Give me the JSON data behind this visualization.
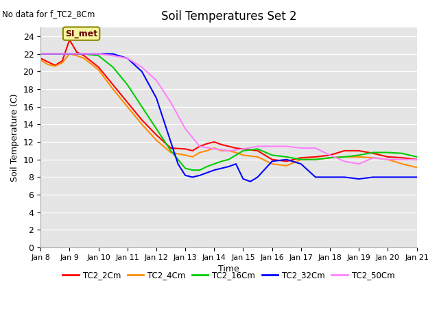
{
  "title": "Soil Temperatures Set 2",
  "xlabel": "Time",
  "ylabel": "Soil Temperature (C)",
  "note": "No data for f_TC2_8Cm",
  "annotation": "SI_met",
  "xlim": [
    0,
    13
  ],
  "ylim": [
    0,
    25
  ],
  "yticks": [
    0,
    2,
    4,
    6,
    8,
    10,
    12,
    14,
    16,
    18,
    20,
    22,
    24
  ],
  "xtick_labels": [
    "Jan 8",
    "Jan 9",
    "Jan 10",
    "Jan 11",
    "Jan 12",
    "Jan 13",
    "Jan 14",
    "Jan 15",
    "Jan 16",
    "Jan 17",
    "Jan 18",
    "Jan 19",
    "Jan 20",
    "Jan 21"
  ],
  "background_color": "#e5e5e5",
  "series": {
    "TC2_2Cm": {
      "color": "#ff0000",
      "x": [
        0,
        0.25,
        0.5,
        0.75,
        1.0,
        1.25,
        1.5,
        2.0,
        2.5,
        3.0,
        3.5,
        4.0,
        4.5,
        5.0,
        5.25,
        5.5,
        5.75,
        6.0,
        6.25,
        6.5,
        6.75,
        7.0,
        7.5,
        8.0,
        8.5,
        9.0,
        9.5,
        10.0,
        10.5,
        11.0,
        11.5,
        12.0,
        12.5,
        13.0
      ],
      "y": [
        21.5,
        21.1,
        20.7,
        21.2,
        23.6,
        22.2,
        21.8,
        20.5,
        18.5,
        16.5,
        14.5,
        12.8,
        11.3,
        11.2,
        11.0,
        11.5,
        11.8,
        12.0,
        11.7,
        11.5,
        11.3,
        11.2,
        11.0,
        10.0,
        9.8,
        10.2,
        10.3,
        10.5,
        11.0,
        11.0,
        10.7,
        10.3,
        10.2,
        10.0
      ]
    },
    "TC2_4Cm": {
      "color": "#ff8c00",
      "x": [
        0,
        0.25,
        0.5,
        0.75,
        1.0,
        1.25,
        1.5,
        2.0,
        2.5,
        3.0,
        3.5,
        4.0,
        4.5,
        5.0,
        5.25,
        5.5,
        5.75,
        6.0,
        6.25,
        6.5,
        6.75,
        7.0,
        7.5,
        8.0,
        8.5,
        9.0,
        9.5,
        10.0,
        10.5,
        11.0,
        11.5,
        12.0,
        12.5,
        13.0
      ],
      "y": [
        21.3,
        20.8,
        20.6,
        21.0,
        22.0,
        21.8,
        21.5,
        20.2,
        18.0,
        16.0,
        14.0,
        12.2,
        10.8,
        10.5,
        10.3,
        10.8,
        11.0,
        11.3,
        11.0,
        11.0,
        10.8,
        10.5,
        10.3,
        9.5,
        9.3,
        10.0,
        10.0,
        10.2,
        10.3,
        10.3,
        10.2,
        10.0,
        9.5,
        9.1
      ]
    },
    "TC2_16Cm": {
      "color": "#00cc00",
      "x": [
        0,
        0.5,
        1.0,
        1.5,
        2.0,
        2.5,
        3.0,
        3.5,
        4.0,
        4.5,
        5.0,
        5.25,
        5.5,
        5.75,
        6.0,
        6.25,
        6.5,
        6.75,
        7.0,
        7.5,
        8.0,
        8.5,
        9.0,
        9.5,
        10.0,
        10.5,
        11.0,
        11.5,
        12.0,
        12.5,
        13.0
      ],
      "y": [
        22.0,
        22.0,
        22.0,
        22.0,
        21.8,
        20.5,
        18.5,
        16.0,
        13.5,
        11.0,
        9.0,
        8.8,
        8.8,
        9.2,
        9.5,
        9.8,
        10.0,
        10.5,
        11.0,
        11.2,
        10.5,
        10.3,
        10.0,
        10.0,
        10.2,
        10.3,
        10.5,
        10.8,
        10.8,
        10.7,
        10.3
      ]
    },
    "TC2_32Cm": {
      "color": "#0000ff",
      "x": [
        0,
        0.5,
        1.0,
        1.5,
        2.0,
        2.5,
        3.0,
        3.5,
        4.0,
        4.5,
        4.75,
        5.0,
        5.25,
        5.5,
        5.75,
        6.0,
        6.25,
        6.5,
        6.75,
        7.0,
        7.25,
        7.5,
        8.0,
        8.5,
        9.0,
        9.5,
        10.0,
        10.5,
        11.0,
        11.5,
        12.0,
        12.5,
        13.0
      ],
      "y": [
        22.0,
        22.0,
        22.0,
        22.0,
        22.0,
        22.0,
        21.5,
        20.0,
        17.0,
        12.0,
        9.5,
        8.2,
        8.0,
        8.2,
        8.5,
        8.8,
        9.0,
        9.2,
        9.5,
        7.8,
        7.5,
        8.0,
        9.8,
        10.0,
        9.5,
        8.0,
        8.0,
        8.0,
        7.8,
        8.0,
        8.0,
        8.0,
        8.0
      ]
    },
    "TC2_50Cm": {
      "color": "#ff80ff",
      "x": [
        0,
        0.5,
        1.0,
        1.5,
        2.0,
        2.5,
        3.0,
        3.5,
        4.0,
        4.5,
        5.0,
        5.5,
        6.0,
        6.5,
        7.0,
        7.5,
        8.0,
        8.5,
        9.0,
        9.5,
        10.0,
        10.5,
        11.0,
        11.5,
        12.0,
        12.5,
        13.0
      ],
      "y": [
        22.0,
        22.0,
        22.0,
        22.0,
        22.0,
        21.8,
        21.5,
        20.5,
        19.0,
        16.5,
        13.5,
        11.5,
        11.2,
        11.0,
        11.2,
        11.5,
        11.5,
        11.5,
        11.3,
        11.3,
        10.5,
        9.8,
        9.5,
        10.2,
        10.0,
        10.0,
        10.0
      ]
    }
  },
  "legend_entries": [
    "TC2_2Cm",
    "TC2_4Cm",
    "TC2_16Cm",
    "TC2_32Cm",
    "TC2_50Cm"
  ],
  "legend_colors": [
    "#ff0000",
    "#ff8c00",
    "#00cc00",
    "#0000ff",
    "#ff80ff"
  ]
}
